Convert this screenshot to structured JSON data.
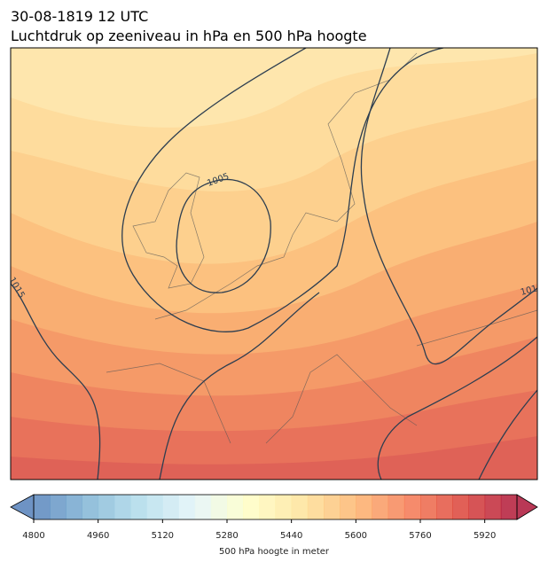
{
  "header": {
    "date": "30-08-1819 12 UTC",
    "title": "Luchtdruk op zeeniveau in hPa en 500 hPa hoogte"
  },
  "map": {
    "contour_labels": [
      "1005",
      "1015",
      "101"
    ]
  },
  "colorbar": {
    "label": "500 hPa hoogte in meter",
    "range": [
      4800,
      6000
    ],
    "step": 40,
    "ticks": [
      4800,
      4960,
      5120,
      5280,
      5440,
      5600,
      5760,
      5920
    ]
  }
}
